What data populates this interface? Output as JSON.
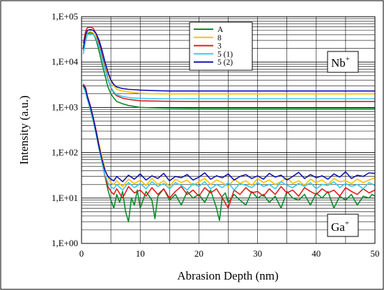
{
  "chart_data": {
    "type": "line",
    "title": "",
    "xlabel": "Abrasion Depth (nm)",
    "ylabel": "Intensity (a.u.)",
    "xlim": [
      0,
      50
    ],
    "ylim": [
      1,
      100000
    ],
    "yscale": "log",
    "grid": "on",
    "legend_position": "top-center",
    "x_ticks": [
      "0",
      "10",
      "20",
      "30",
      "40",
      "50"
    ],
    "x_tick_values": [
      0,
      10,
      20,
      30,
      40,
      50
    ],
    "y_ticks": [
      "1,E+00",
      "1,E+01",
      "1,E+02",
      "1,E+03",
      "1,E+04",
      "1,E+05"
    ],
    "y_tick_values": [
      1,
      10,
      100,
      1000,
      10000,
      100000
    ],
    "annotations": [
      {
        "base": "Nb",
        "sup": "+",
        "element": "Nb"
      },
      {
        "base": "Ga",
        "sup": "+",
        "element": "Ga"
      }
    ],
    "series": [
      {
        "name": "A",
        "color": "#0a8a2a",
        "nb": {
          "x": [
            0.3,
            0.7,
            1,
            1.5,
            2,
            2.5,
            3,
            3.5,
            4,
            4.5,
            5,
            5.5,
            6,
            7,
            8,
            9,
            10,
            12,
            15,
            20,
            25,
            30,
            35,
            40,
            45,
            50
          ],
          "y": [
            18000,
            30000,
            42000,
            45000,
            42000,
            30000,
            17000,
            9000,
            5000,
            2800,
            2000,
            1600,
            1350,
            1200,
            1100,
            1050,
            1000,
            980,
            960,
            950,
            950,
            950,
            950,
            950,
            950,
            950
          ]
        },
        "ga": {
          "x": [
            0.3,
            0.7,
            1,
            1.5,
            2,
            2.5,
            3,
            3.5,
            4,
            4.5,
            5,
            5.5,
            6,
            6.5,
            7,
            7.5,
            8,
            8.5,
            9,
            9.5,
            10,
            11,
            12,
            12.5,
            13,
            14,
            15,
            16,
            17,
            18,
            19,
            20,
            21,
            22,
            23,
            23.5,
            24,
            24.5,
            25,
            26,
            27,
            28,
            29,
            30,
            31,
            32,
            33,
            34,
            35,
            36,
            37,
            38,
            39,
            40,
            41,
            42,
            43,
            44,
            45,
            46,
            47,
            48,
            49,
            49.5,
            50
          ],
          "y": [
            3000,
            2200,
            1500,
            900,
            500,
            250,
            120,
            60,
            30,
            15,
            9,
            6,
            12,
            8,
            14,
            5,
            3,
            10,
            7,
            15,
            6,
            14,
            9,
            3.5,
            11,
            16,
            9,
            12,
            7,
            14,
            10,
            12,
            8,
            15,
            6,
            3.2,
            11,
            13,
            8,
            12,
            9,
            7,
            14,
            10,
            12,
            8,
            11,
            6,
            14,
            10,
            9,
            12,
            7,
            13,
            10,
            14,
            6,
            11,
            9,
            12,
            7,
            11,
            10,
            12,
            11
          ]
        }
      },
      {
        "name": "8",
        "color": "#ffc000",
        "nb": {
          "x": [
            0.3,
            0.7,
            1,
            1.5,
            2,
            2.5,
            3,
            3.5,
            4,
            4.5,
            5,
            5.5,
            6,
            7,
            8,
            9,
            10,
            12,
            15,
            20,
            25,
            30,
            35,
            40,
            45,
            50
          ],
          "y": [
            22000,
            38000,
            46000,
            47000,
            44000,
            36000,
            24000,
            14000,
            8500,
            5500,
            3800,
            3000,
            2500,
            2300,
            2200,
            2100,
            2050,
            2000,
            1980,
            1980,
            1980,
            1980,
            1980,
            1980,
            1980,
            1980
          ]
        },
        "ga": {
          "x": [
            0.3,
            0.7,
            1,
            1.5,
            2,
            2.5,
            3,
            3.5,
            4,
            4.5,
            5,
            5.5,
            6,
            7,
            8,
            9,
            10,
            11,
            12,
            13,
            14,
            15,
            16,
            17,
            18,
            19,
            20,
            21,
            22,
            23,
            24,
            25,
            26,
            27,
            28,
            29,
            30,
            31,
            32,
            33,
            34,
            35,
            36,
            37,
            38,
            39,
            40,
            41,
            42,
            43,
            44,
            45,
            46,
            47,
            48,
            49,
            50
          ],
          "y": [
            2900,
            2300,
            1600,
            1000,
            600,
            300,
            150,
            80,
            45,
            28,
            22,
            20,
            24,
            18,
            26,
            21,
            25,
            19,
            27,
            20,
            24,
            18,
            26,
            22,
            25,
            19,
            23,
            27,
            20,
            25,
            22,
            18,
            26,
            21,
            24,
            19,
            27,
            22,
            25,
            20,
            23,
            28,
            21,
            24,
            19,
            26,
            22,
            25,
            20,
            27,
            23,
            24,
            21,
            26,
            22,
            25,
            28
          ]
        }
      },
      {
        "name": "3",
        "color": "#e41a1c",
        "nb": {
          "x": [
            0.3,
            0.7,
            1,
            1.5,
            2,
            2.5,
            3,
            3.5,
            4,
            4.5,
            5,
            5.5,
            6,
            7,
            8,
            9,
            10,
            12,
            15,
            20,
            25,
            30,
            35,
            40,
            45,
            50
          ],
          "y": [
            26000,
            48000,
            57000,
            59000,
            55000,
            42000,
            26000,
            14000,
            7500,
            4200,
            2700,
            2100,
            1800,
            1600,
            1500,
            1450,
            1400,
            1380,
            1360,
            1350,
            1350,
            1350,
            1350,
            1350,
            1350,
            1350
          ]
        },
        "ga": {
          "x": [
            0.3,
            0.7,
            1,
            1.5,
            2,
            2.5,
            3,
            3.5,
            4,
            4.5,
            5,
            5.5,
            6,
            7,
            8,
            9,
            10,
            11,
            12,
            13,
            14,
            15,
            16,
            17,
            18,
            19,
            20,
            21,
            22,
            23,
            24,
            25,
            26,
            27,
            28,
            29,
            30,
            31,
            32,
            33,
            34,
            35,
            36,
            37,
            38,
            39,
            40,
            41,
            42,
            43,
            44,
            45,
            46,
            47,
            48,
            49,
            50
          ],
          "y": [
            3300,
            2700,
            1800,
            1100,
            600,
            300,
            140,
            60,
            30,
            18,
            14,
            12,
            16,
            10,
            18,
            13,
            15,
            11,
            17,
            12,
            16,
            10,
            14,
            18,
            12,
            15,
            11,
            17,
            13,
            16,
            10,
            6,
            15,
            12,
            17,
            13,
            14,
            11,
            16,
            12,
            18,
            13,
            15,
            11,
            17,
            14,
            12,
            16,
            13,
            15,
            11,
            17,
            14,
            12,
            16,
            13,
            15
          ]
        }
      },
      {
        "name": "5 (1)",
        "color": "#33ccee",
        "nb": {
          "x": [
            0.3,
            0.7,
            1,
            1.5,
            2,
            2.5,
            3,
            3.5,
            4,
            4.5,
            5,
            5.5,
            6,
            7,
            8,
            9,
            10,
            12,
            15,
            20,
            25,
            30,
            35,
            40,
            45,
            50
          ],
          "y": [
            15000,
            30000,
            40000,
            42000,
            40000,
            33000,
            22000,
            12000,
            7000,
            4000,
            2800,
            2200,
            1900,
            1750,
            1650,
            1600,
            1580,
            1560,
            1550,
            1550,
            1550,
            1550,
            1550,
            1550,
            1550,
            1550
          ]
        },
        "ga": {
          "x": [
            0.3,
            0.7,
            1,
            1.5,
            2,
            2.5,
            3,
            3.5,
            4,
            4.5,
            5,
            5.5,
            6,
            7,
            8,
            9,
            10,
            11,
            12,
            13,
            14,
            15,
            16,
            17,
            18,
            19,
            20,
            21,
            22,
            23,
            24,
            25,
            26,
            27,
            28,
            29,
            30,
            31,
            32,
            33,
            34,
            35,
            36,
            37,
            38,
            39,
            40,
            41,
            42,
            43,
            44,
            45,
            46,
            47,
            48,
            49,
            50
          ],
          "y": [
            2800,
            2100,
            1500,
            950,
            520,
            260,
            120,
            60,
            32,
            22,
            18,
            16,
            20,
            15,
            22,
            17,
            21,
            16,
            23,
            18,
            21,
            16,
            22,
            19,
            15,
            21,
            18,
            23,
            16,
            20,
            17,
            22,
            15,
            21,
            19,
            17,
            22,
            18,
            20,
            16,
            23,
            19,
            17,
            21,
            18,
            22,
            16,
            20,
            19,
            23,
            17,
            21,
            18,
            20,
            16,
            22,
            19
          ]
        }
      },
      {
        "name": "5 (2)",
        "color": "#1010b0",
        "nb": {
          "x": [
            0.3,
            0.7,
            1,
            1.5,
            2,
            2.5,
            3,
            3.5,
            4,
            4.5,
            5,
            5.5,
            6,
            7,
            8,
            9,
            10,
            12,
            15,
            20,
            25,
            30,
            35,
            40,
            45,
            50
          ],
          "y": [
            20000,
            40000,
            50000,
            52000,
            50000,
            42000,
            30000,
            18000,
            10000,
            6000,
            4000,
            3200,
            2800,
            2600,
            2500,
            2450,
            2400,
            2350,
            2300,
            2300,
            2300,
            2300,
            2300,
            2300,
            2300,
            2300
          ]
        },
        "ga": {
          "x": [
            0.3,
            0.7,
            1,
            1.5,
            2,
            2.5,
            3,
            3.5,
            4,
            4.5,
            5,
            5.5,
            6,
            7,
            8,
            9,
            10,
            11,
            12,
            13,
            14,
            15,
            16,
            17,
            18,
            19,
            20,
            21,
            22,
            23,
            24,
            25,
            26,
            27,
            28,
            29,
            30,
            31,
            32,
            33,
            34,
            35,
            36,
            37,
            38,
            39,
            40,
            41,
            42,
            43,
            44,
            45,
            46,
            47,
            48,
            49,
            50
          ],
          "y": [
            3100,
            2500,
            1700,
            1050,
            580,
            280,
            130,
            70,
            40,
            30,
            26,
            24,
            30,
            23,
            32,
            26,
            34,
            25,
            31,
            27,
            35,
            24,
            30,
            28,
            33,
            25,
            29,
            36,
            26,
            31,
            28,
            34,
            25,
            30,
            33,
            27,
            31,
            26,
            35,
            29,
            32,
            25,
            30,
            37,
            27,
            33,
            28,
            31,
            26,
            34,
            29,
            38,
            27,
            32,
            30,
            36,
            35
          ]
        }
      }
    ]
  }
}
